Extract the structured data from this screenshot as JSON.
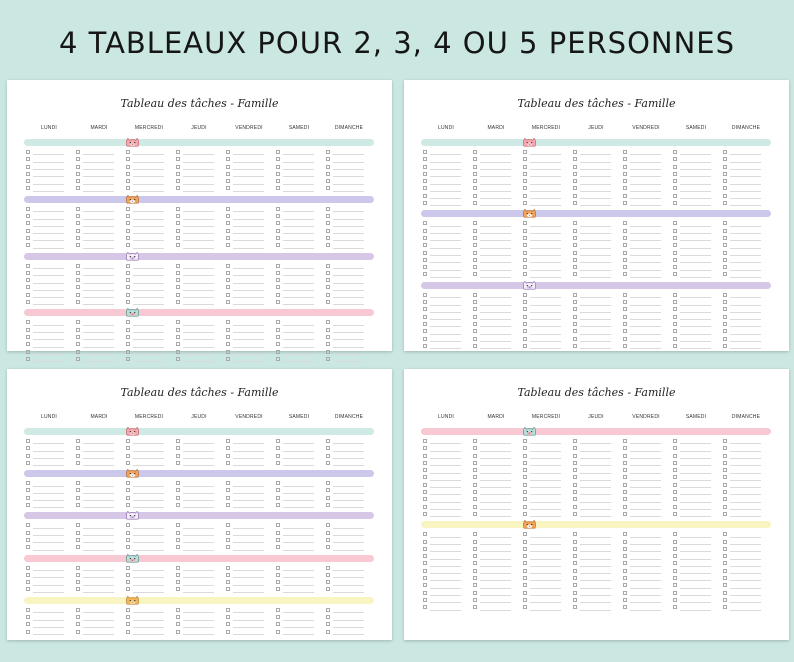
{
  "headline": "4 TABLEAUX POUR 2, 3, 4 OU 5 PERSONNES",
  "sheet_title": "Tableau des tâches - Famille",
  "days": [
    "LUNDI",
    "MARDI",
    "MERCREDI",
    "JEUDI",
    "VENDREDI",
    "SAMEDI",
    "DIMANCHE"
  ],
  "colors": {
    "background": "#cbe7e2",
    "mint": "#cfe9e4",
    "lavender": "#cbc8eb",
    "lilac": "#d6c7e6",
    "pink": "#f8c9d3",
    "yellow": "#f9f5c3"
  },
  "sheets": [
    {
      "position": "top-left",
      "people": 4,
      "rows_per_person": 6,
      "bands": [
        "mint",
        "lavender",
        "lilac",
        "pink"
      ],
      "cats": [
        "pink-cat-icon",
        "orange-cat-icon",
        "sleepy-cat-icon",
        "teal-cat-icon"
      ]
    },
    {
      "position": "top-right",
      "people": 3,
      "rows_per_person": 8,
      "bands": [
        "mint",
        "lavender",
        "lilac"
      ],
      "cats": [
        "pink-cat-icon",
        "orange-cat-icon",
        "sleepy-cat-icon"
      ]
    },
    {
      "position": "bottom-left",
      "people": 5,
      "rows_per_person": 4,
      "bands": [
        "mint",
        "lavender",
        "lilac",
        "pink",
        "yellow"
      ],
      "cats": [
        "pink-cat-icon",
        "orange-cat-icon",
        "sleepy-cat-icon",
        "teal-cat-icon",
        "yellow-cat-icon"
      ]
    },
    {
      "position": "bottom-right",
      "people": 2,
      "rows_per_person": 11,
      "bands": [
        "pink",
        "yellow"
      ],
      "cats": [
        "teal-cat-icon",
        "orange-cat-icon"
      ]
    }
  ]
}
